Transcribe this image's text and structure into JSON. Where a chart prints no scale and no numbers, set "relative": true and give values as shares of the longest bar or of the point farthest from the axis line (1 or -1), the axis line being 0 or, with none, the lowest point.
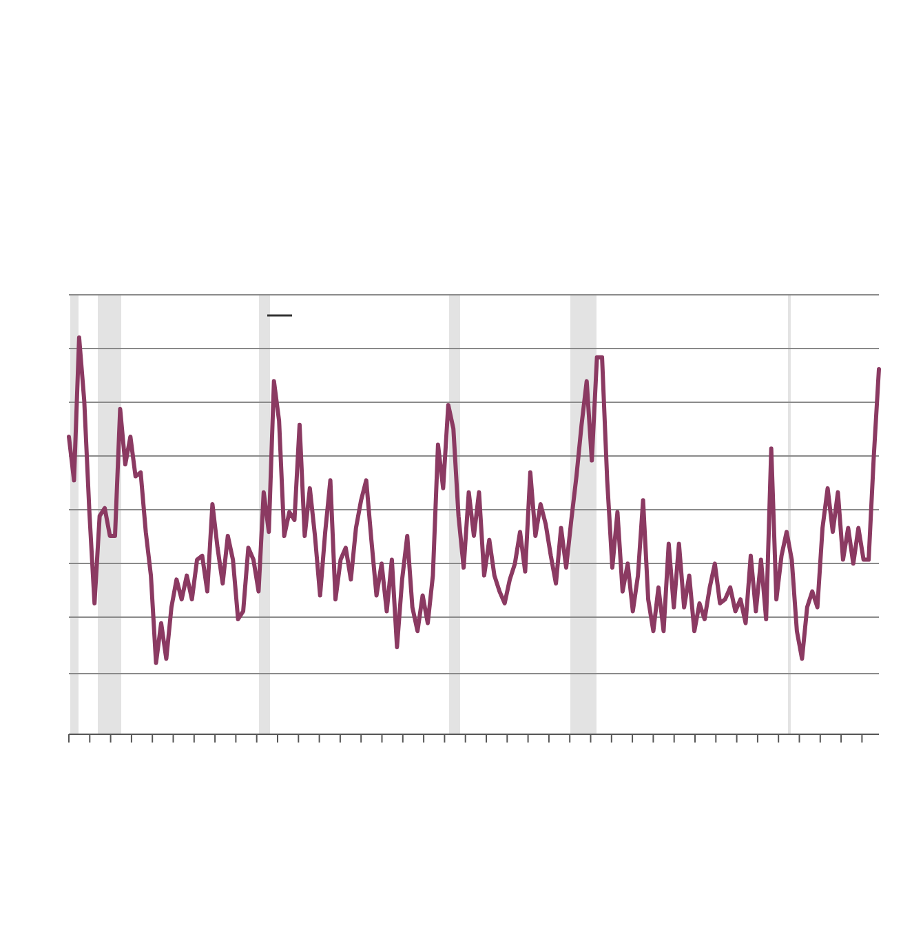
{
  "chart_data": {
    "type": "line",
    "relative": true,
    "grid": "y",
    "line_style": "solid",
    "categories": [
      null,
      null,
      null,
      null,
      null,
      null,
      null,
      null,
      null,
      null,
      null,
      null,
      null,
      null,
      null,
      null,
      null,
      null,
      null,
      null,
      null,
      null,
      null,
      null,
      null,
      null,
      null,
      null,
      null,
      null,
      null,
      null,
      null,
      null,
      null,
      null,
      null,
      null,
      null,
      null,
      null,
      null,
      null,
      null,
      null,
      null,
      null,
      null,
      null,
      null,
      null,
      null,
      null,
      null,
      null,
      null,
      null,
      null,
      null,
      null,
      null,
      null,
      null,
      null,
      null,
      null,
      null,
      null,
      null,
      null,
      null,
      null,
      null,
      null,
      null,
      null,
      null,
      null,
      null,
      null,
      null,
      null,
      null,
      null,
      null,
      null,
      null,
      null,
      null,
      null,
      null,
      null,
      null,
      null,
      null,
      null,
      null,
      null,
      null,
      null,
      null,
      null,
      null,
      null,
      null,
      null,
      null,
      null,
      null,
      null,
      null,
      null,
      null,
      null,
      null,
      null,
      null,
      null,
      null,
      null,
      null,
      null,
      null,
      null,
      null,
      null,
      null,
      null,
      null,
      null,
      null,
      null,
      null,
      null,
      null,
      null,
      null,
      null,
      null,
      null,
      null,
      null,
      null,
      null,
      null,
      null,
      null,
      null,
      null,
      null,
      null,
      null,
      null,
      null,
      null,
      null,
      null,
      null,
      null
    ],
    "series": [
      {
        "color": "#8b3a62",
        "values": [
          0.75,
          0.64,
          1,
          0.84,
          0.56,
          0.33,
          0.55,
          0.57,
          0.5,
          0.5,
          0.82,
          0.68,
          0.75,
          0.65,
          0.66,
          0.51,
          0.4,
          0.18,
          0.28,
          0.19,
          0.32,
          0.39,
          0.34,
          0.4,
          0.34,
          0.44,
          0.45,
          0.36,
          0.58,
          0.47,
          0.38,
          0.5,
          0.44,
          0.29,
          0.31,
          0.47,
          0.44,
          0.36,
          0.61,
          0.51,
          0.89,
          0.79,
          0.5,
          0.56,
          0.54,
          0.78,
          0.5,
          0.62,
          0.5,
          0.35,
          0.51,
          0.64,
          0.34,
          0.44,
          0.47,
          0.39,
          0.52,
          0.59,
          0.64,
          0.49,
          0.35,
          0.43,
          0.31,
          0.44,
          0.22,
          0.39,
          0.5,
          0.32,
          0.26,
          0.35,
          0.28,
          0.4,
          0.73,
          0.62,
          0.83,
          0.77,
          0.55,
          0.42,
          0.61,
          0.5,
          0.61,
          0.4,
          0.49,
          0.4,
          0.36,
          0.33,
          0.39,
          0.43,
          0.51,
          0.41,
          0.66,
          0.5,
          0.58,
          0.53,
          0.45,
          0.38,
          0.52,
          0.42,
          0.54,
          0.65,
          0.78,
          0.89,
          0.69,
          0.95,
          0.95,
          0.64,
          0.42,
          0.56,
          0.36,
          0.43,
          0.31,
          0.4,
          0.59,
          0.34,
          0.26,
          0.37,
          0.26,
          0.48,
          0.32,
          0.48,
          0.32,
          0.4,
          0.26,
          0.33,
          0.29,
          0.37,
          0.43,
          0.33,
          0.34,
          0.37,
          0.31,
          0.34,
          0.28,
          0.45,
          0.31,
          0.44,
          0.29,
          0.72,
          0.34,
          0.45,
          0.51,
          0.44,
          0.26,
          0.19,
          0.32,
          0.36,
          0.32,
          0.52,
          0.62,
          0.51,
          0.61,
          0.44,
          0.52,
          0.43,
          0.52,
          0.44,
          0.44,
          0.7,
          0.92
        ]
      }
    ]
  }
}
